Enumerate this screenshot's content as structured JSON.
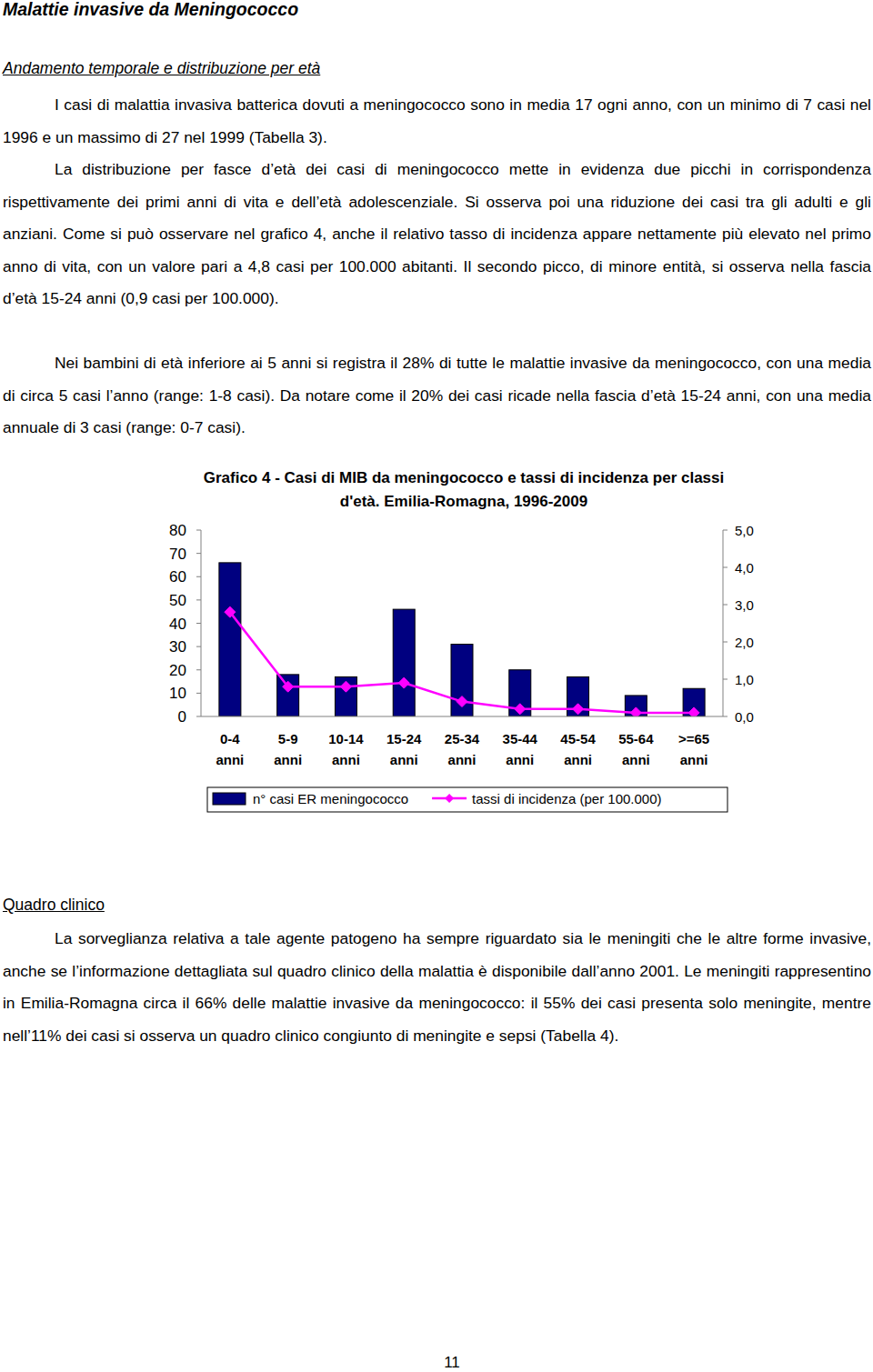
{
  "header": {
    "title": "Malattie invasive da Meningococco"
  },
  "section1": {
    "heading": "Andamento temporale e distribuzione per età",
    "paragraphs": [
      "I casi di malattia invasiva batterica dovuti a meningococco sono in media 17 ogni anno, con un minimo di 7 casi nel 1996 e un massimo di 27 nel 1999 (Tabella 3).",
      "La distribuzione per fasce d’età dei casi di meningococco mette in evidenza due picchi in corrispondenza rispettivamente dei primi anni di vita e dell’età adolescenziale. Si osserva poi una riduzione dei casi tra gli adulti e gli anziani. Come si può osservare nel grafico 4, anche il relativo tasso di incidenza appare nettamente più elevato nel primo anno di vita, con un valore pari a 4,8 casi per 100.000 abitanti. Il secondo picco, di minore entità, si osserva nella fascia d’età 15-24 anni (0,9 casi per 100.000).",
      "Nei bambini di età inferiore ai 5 anni si registra il 28% di tutte le malattie invasive da meningococco, con una media di circa 5 casi l’anno (range: 1-8 casi). Da notare come il 20% dei casi ricade nella fascia d’età 15-24 anni, con una media annuale di 3 casi (range: 0-7 casi)."
    ]
  },
  "chart_data": {
    "type": "bar",
    "title": "Grafico 4 - Casi di MIB da meningococco e tassi di incidenza per classi d'età. Emilia-Romagna, 1996-2009",
    "categories": [
      "0-4 anni",
      "5-9 anni",
      "10-14 anni",
      "15-24 anni",
      "25-34 anni",
      "35-44 anni",
      "45-54 anni",
      "55-64 anni",
      ">=65 anni"
    ],
    "series": [
      {
        "name": "n° casi ER meningococco",
        "type": "bar",
        "color": "#000080",
        "values": [
          66,
          18,
          17,
          46,
          31,
          20,
          17,
          9,
          12
        ]
      },
      {
        "name": "tassi di incidenza (per 100.000)",
        "type": "line",
        "color": "#ff00ff",
        "marker": "diamond",
        "axis": "y2",
        "values": [
          2.8,
          0.8,
          0.8,
          0.9,
          0.4,
          0.2,
          0.2,
          0.1,
          0.1
        ]
      }
    ],
    "ylim": [
      0,
      80
    ],
    "yticks": [
      0,
      10,
      20,
      30,
      40,
      50,
      60,
      70,
      80
    ],
    "y2lim": [
      0,
      5
    ],
    "y2ticks": [
      {
        "value": 0,
        "label": "0,0"
      },
      {
        "value": 1,
        "label": "1,0"
      },
      {
        "value": 2,
        "label": "2,0"
      },
      {
        "value": 3,
        "label": "3,0"
      },
      {
        "value": 4,
        "label": "4,0"
      },
      {
        "value": 5,
        "label": "5,0"
      }
    ],
    "grid": false,
    "legend": "bottom"
  },
  "section2": {
    "heading": "Quadro clinico",
    "paragraphs": [
      "La sorveglianza relativa a tale agente patogeno ha sempre riguardato sia le meningiti che le altre forme invasive, anche se l’informazione dettagliata sul quadro clinico della malattia è disponibile dall’anno 2001. Le meningiti rappresentino in Emilia-Romagna circa il 66% delle malattie invasive da meningococco: il 55% dei casi presenta solo meningite, mentre nell’11% dei casi si osserva un quadro clinico congiunto di meningite e sepsi (Tabella 4)."
    ]
  },
  "page_number": 11
}
